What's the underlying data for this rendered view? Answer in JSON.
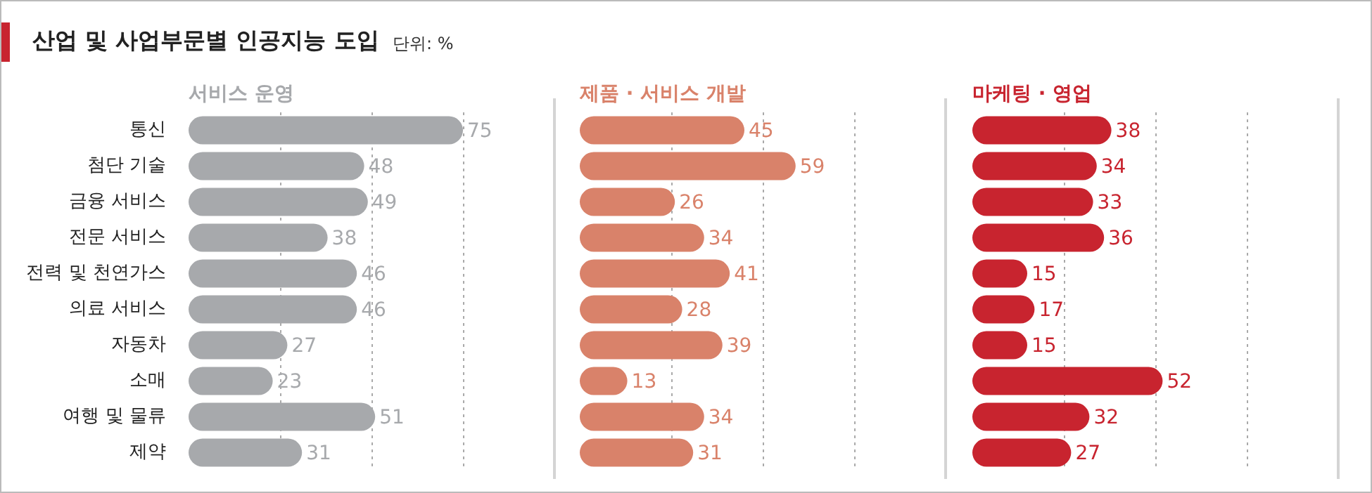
{
  "chart_data": [
    {
      "type": "bar",
      "orientation": "horizontal",
      "title": "산업 및 사업부문별 인공지능 도입",
      "subtitle": "단위: %",
      "categories": [
        "통신",
        "첨단 기술",
        "금융 서비스",
        "전문 서비스",
        "전력 및 천연가스",
        "의료 서비스",
        "자동차",
        "소매",
        "여행 및 물류",
        "제약"
      ],
      "series": [
        {
          "name": "서비스 운영",
          "color": "#a7a9ac",
          "values": [
            75,
            48,
            49,
            38,
            46,
            46,
            27,
            23,
            51,
            31
          ]
        }
      ],
      "xlim": [
        0,
        100
      ],
      "xticks": [
        {
          "value": 25,
          "label": null
        },
        {
          "value": 50,
          "label": null
        },
        {
          "value": 75,
          "label": null
        }
      ],
      "grid": "x",
      "tick_labels": "y",
      "data_labels": true
    },
    {
      "type": "bar",
      "orientation": "horizontal",
      "categories": [
        null,
        null,
        null,
        null,
        null,
        null,
        null,
        null,
        null,
        null
      ],
      "series": [
        {
          "name": "제품 · 서비스 개발",
          "color": "#d9826a",
          "values": [
            45,
            59,
            26,
            34,
            41,
            28,
            39,
            13,
            34,
            31
          ]
        }
      ],
      "xlim": [
        0,
        100
      ],
      "xticks": [
        {
          "value": 25,
          "label": null
        },
        {
          "value": 50,
          "label": null
        },
        {
          "value": 75,
          "label": null
        }
      ],
      "grid": "x",
      "tick_labels": false,
      "data_labels": true
    },
    {
      "type": "bar",
      "orientation": "horizontal",
      "categories": [
        null,
        null,
        null,
        null,
        null,
        null,
        null,
        null,
        null,
        null
      ],
      "series": [
        {
          "name": "마케팅 · 영업",
          "color": "#c8242f",
          "values": [
            38,
            34,
            33,
            36,
            15,
            17,
            15,
            52,
            32,
            27
          ]
        }
      ],
      "xlim": [
        0,
        100
      ],
      "xticks": [
        {
          "value": 25,
          "label": null
        },
        {
          "value": 50,
          "label": null
        },
        {
          "value": 75,
          "label": null
        }
      ],
      "grid": "x",
      "tick_labels": false,
      "data_labels": true
    }
  ]
}
